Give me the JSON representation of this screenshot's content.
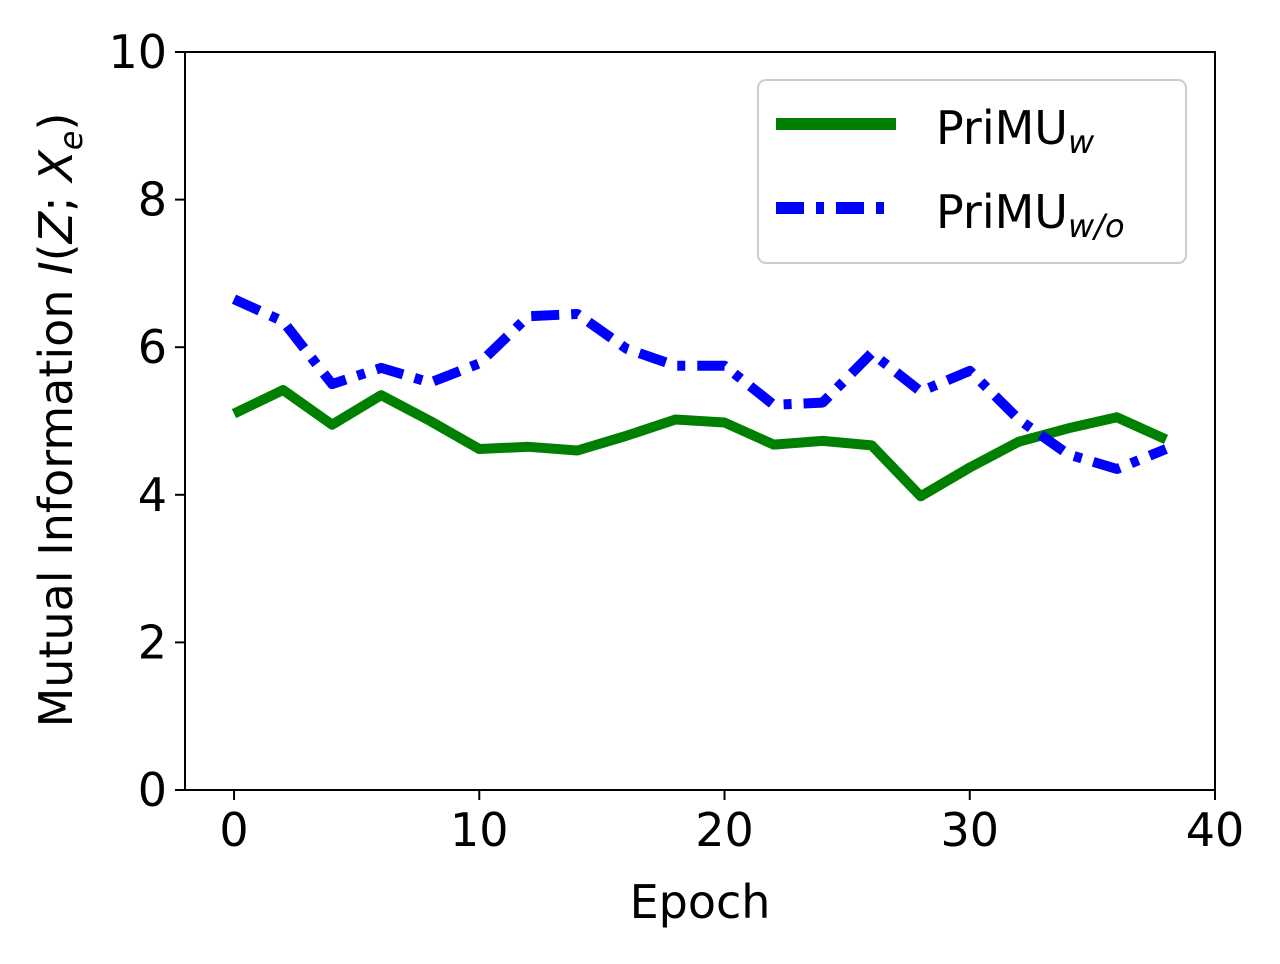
{
  "chart_data": {
    "type": "line",
    "title": "",
    "xlabel": "Epoch",
    "ylabel": {
      "main": "Mutual Information ",
      "formula_I": "I",
      "formula_open": "(",
      "formula_Z": "Z",
      "formula_sep": "; ",
      "formula_X": "X",
      "formula_sub": "e",
      "formula_close": ")"
    },
    "xlim": [
      -2,
      40
    ],
    "ylim": [
      0,
      10
    ],
    "xticks": [
      0,
      10,
      20,
      30,
      40
    ],
    "yticks": [
      0,
      2,
      4,
      6,
      8,
      10
    ],
    "xtick_labels": [
      "0",
      "10",
      "20",
      "30",
      "40"
    ],
    "ytick_labels": [
      "0",
      "2",
      "4",
      "6",
      "8",
      "10"
    ],
    "grid": false,
    "legend_position": "top-right",
    "series": [
      {
        "name": "PriMU",
        "name_sub": "w",
        "color": "#008000",
        "style": "solid",
        "x": [
          0,
          2,
          4,
          6,
          8,
          10,
          12,
          14,
          16,
          18,
          20,
          22,
          24,
          26,
          28,
          30,
          32,
          34,
          36,
          38
        ],
        "y": [
          5.1,
          5.42,
          4.95,
          5.35,
          5.0,
          4.62,
          4.65,
          4.6,
          4.8,
          5.02,
          4.98,
          4.68,
          4.73,
          4.67,
          3.98,
          4.37,
          4.72,
          4.9,
          5.05,
          4.75
        ]
      },
      {
        "name": "PriMU",
        "name_sub": "w/o",
        "color": "#0000ff",
        "style": "dashdot",
        "x": [
          0,
          2,
          4,
          6,
          8,
          10,
          12,
          14,
          16,
          18,
          20,
          22,
          24,
          26,
          28,
          30,
          32,
          34,
          36,
          38
        ],
        "y": [
          6.65,
          6.35,
          5.5,
          5.72,
          5.52,
          5.78,
          6.42,
          6.45,
          5.98,
          5.75,
          5.75,
          5.22,
          5.25,
          5.92,
          5.4,
          5.68,
          5.02,
          4.55,
          4.35,
          4.62
        ]
      }
    ]
  }
}
